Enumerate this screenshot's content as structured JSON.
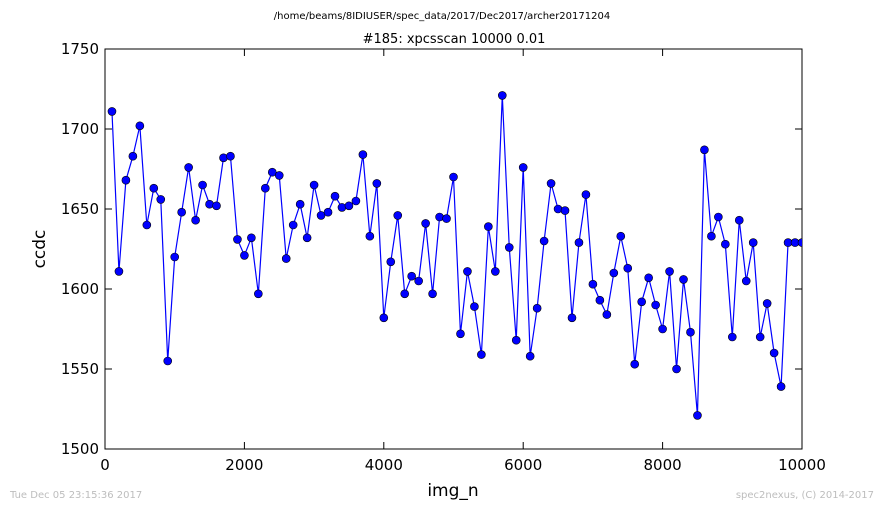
{
  "header": {
    "filepath": "/home/beams/8IDIUSER/spec_data/2017/Dec2017/archer20171204"
  },
  "footer": {
    "timestamp": "Tue Dec 05 23:15:36 2017",
    "credit": "spec2nexus, (C) 2014-2017"
  },
  "chart_data": {
    "type": "line",
    "title": "#185: xpcsscan 10000 0.01",
    "xlabel": "img_n",
    "ylabel": "ccdc",
    "xlim": [
      0,
      10000
    ],
    "ylim": [
      1500,
      1750
    ],
    "xticks": [
      "0",
      "2000",
      "4000",
      "6000",
      "8000",
      "10000"
    ],
    "yticks": [
      "1500",
      "1550",
      "1600",
      "1650",
      "1700",
      "1750"
    ],
    "grid": false,
    "marker": "circle",
    "line_color": "#0000ff",
    "series": [
      {
        "x": [
          100,
          200,
          300,
          400,
          500,
          600,
          700,
          800,
          900,
          1000,
          1100,
          1200,
          1300,
          1400,
          1500,
          1600,
          1700,
          1800,
          1900,
          2000,
          2100,
          2200,
          2300,
          2400,
          2500,
          2600,
          2700,
          2800,
          2900,
          3000,
          3100,
          3200,
          3300,
          3400,
          3500,
          3600,
          3700,
          3800,
          3900,
          4000,
          4100,
          4200,
          4300,
          4400,
          4500,
          4600,
          4700,
          4800,
          4900,
          5000,
          5100,
          5200,
          5300,
          5400,
          5500,
          5600,
          5700,
          5800,
          5900,
          6000,
          6100,
          6200,
          6300,
          6400,
          6500,
          6600,
          6700,
          6800,
          6900,
          7000,
          7100,
          7200,
          7300,
          7400,
          7500,
          7600,
          7700,
          7800,
          7900,
          8000,
          8100,
          8200,
          8300,
          8400,
          8500,
          8600,
          8700,
          8800,
          8900,
          9000,
          9100,
          9200,
          9300,
          9400,
          9500,
          9600,
          9700,
          9800,
          9900,
          10000
        ],
        "values": [
          1711,
          1611,
          1668,
          1683,
          1702,
          1640,
          1663,
          1656,
          1555,
          1620,
          1648,
          1676,
          1643,
          1665,
          1653,
          1652,
          1682,
          1683,
          1631,
          1621,
          1632,
          1597,
          1663,
          1673,
          1671,
          1619,
          1640,
          1653,
          1632,
          1665,
          1646,
          1648,
          1658,
          1651,
          1652,
          1655,
          1684,
          1633,
          1666,
          1582,
          1617,
          1646,
          1597,
          1608,
          1605,
          1641,
          1597,
          1645,
          1644,
          1670,
          1572,
          1611,
          1589,
          1559,
          1639,
          1611,
          1721,
          1626,
          1568,
          1676,
          1558,
          1588,
          1630,
          1666,
          1650,
          1649,
          1582,
          1629,
          1659,
          1603,
          1593,
          1584,
          1610,
          1633,
          1613,
          1553,
          1592,
          1607,
          1590,
          1575,
          1611,
          1550,
          1606,
          1573,
          1521,
          1687,
          1633,
          1645,
          1628,
          1570,
          1643,
          1605,
          1629,
          1570,
          1591,
          1560,
          1539,
          1629,
          1629,
          1629
        ]
      }
    ]
  }
}
